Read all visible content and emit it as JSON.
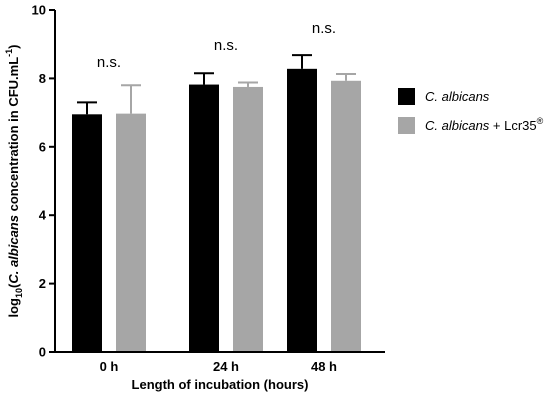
{
  "chart_data": {
    "type": "bar",
    "categories": [
      "0 h",
      "24 h",
      "48 h"
    ],
    "series": [
      {
        "name_italic": "C. albicans",
        "name_suffix": "",
        "name_sup": "",
        "color": "#000000",
        "values": [
          6.95,
          7.82,
          8.28
        ],
        "errors": [
          0.35,
          0.33,
          0.4
        ]
      },
      {
        "name_italic": "C. albicans",
        "name_suffix": " + Lcr35",
        "name_sup": "®",
        "color": "#a6a6a6",
        "values": [
          6.97,
          7.75,
          7.93
        ],
        "errors": [
          0.83,
          0.13,
          0.2
        ]
      }
    ],
    "annotations": [
      "n.s.",
      "n.s.",
      "n.s."
    ],
    "xlabel": "Length of incubation (hours)",
    "ylabel": {
      "prefix": "log",
      "sub": "10",
      "open": "(",
      "italic": "C. albicans",
      "rest": " concentration in CFU.mL",
      "sup": "-1",
      "close": ")"
    },
    "ylim": [
      0,
      10
    ],
    "yticks": [
      0,
      2,
      4,
      6,
      8,
      10
    ],
    "legend_position": "right",
    "grid": false
  }
}
